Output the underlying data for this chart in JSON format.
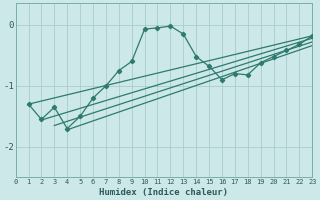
{
  "background_color": "#cce8e8",
  "grid_color": "#aacccc",
  "line_color": "#2d7a6e",
  "xlabel": "Humidex (Indice chaleur)",
  "xlim": [
    0,
    23
  ],
  "ylim": [
    -2.5,
    0.35
  ],
  "yticks": [
    0,
    -1,
    -2
  ],
  "xticks": [
    0,
    1,
    2,
    3,
    4,
    5,
    6,
    7,
    8,
    9,
    10,
    11,
    12,
    13,
    14,
    15,
    16,
    17,
    18,
    19,
    20,
    21,
    22,
    23
  ],
  "main_series": [
    [
      1,
      -1.3
    ],
    [
      2,
      -1.55
    ],
    [
      3,
      -1.35
    ],
    [
      4,
      -1.7
    ],
    [
      5,
      -1.5
    ],
    [
      6,
      -1.2
    ],
    [
      7,
      -1.0
    ],
    [
      8,
      -0.75
    ],
    [
      9,
      -0.6
    ],
    [
      10,
      -0.07
    ],
    [
      11,
      -0.05
    ],
    [
      12,
      -0.02
    ],
    [
      13,
      -0.15
    ],
    [
      14,
      -0.52
    ],
    [
      15,
      -0.68
    ],
    [
      16,
      -0.9
    ],
    [
      17,
      -0.8
    ],
    [
      18,
      -0.82
    ],
    [
      19,
      -0.62
    ],
    [
      20,
      -0.52
    ],
    [
      21,
      -0.42
    ],
    [
      22,
      -0.32
    ],
    [
      23,
      -0.18
    ]
  ],
  "straight_lines": [
    [
      [
        1,
        -1.3
      ],
      [
        23,
        -0.18
      ]
    ],
    [
      [
        2,
        -1.56
      ],
      [
        23,
        -0.22
      ]
    ],
    [
      [
        3,
        -1.65
      ],
      [
        23,
        -0.28
      ]
    ],
    [
      [
        4,
        -1.72
      ],
      [
        23,
        -0.34
      ]
    ]
  ]
}
